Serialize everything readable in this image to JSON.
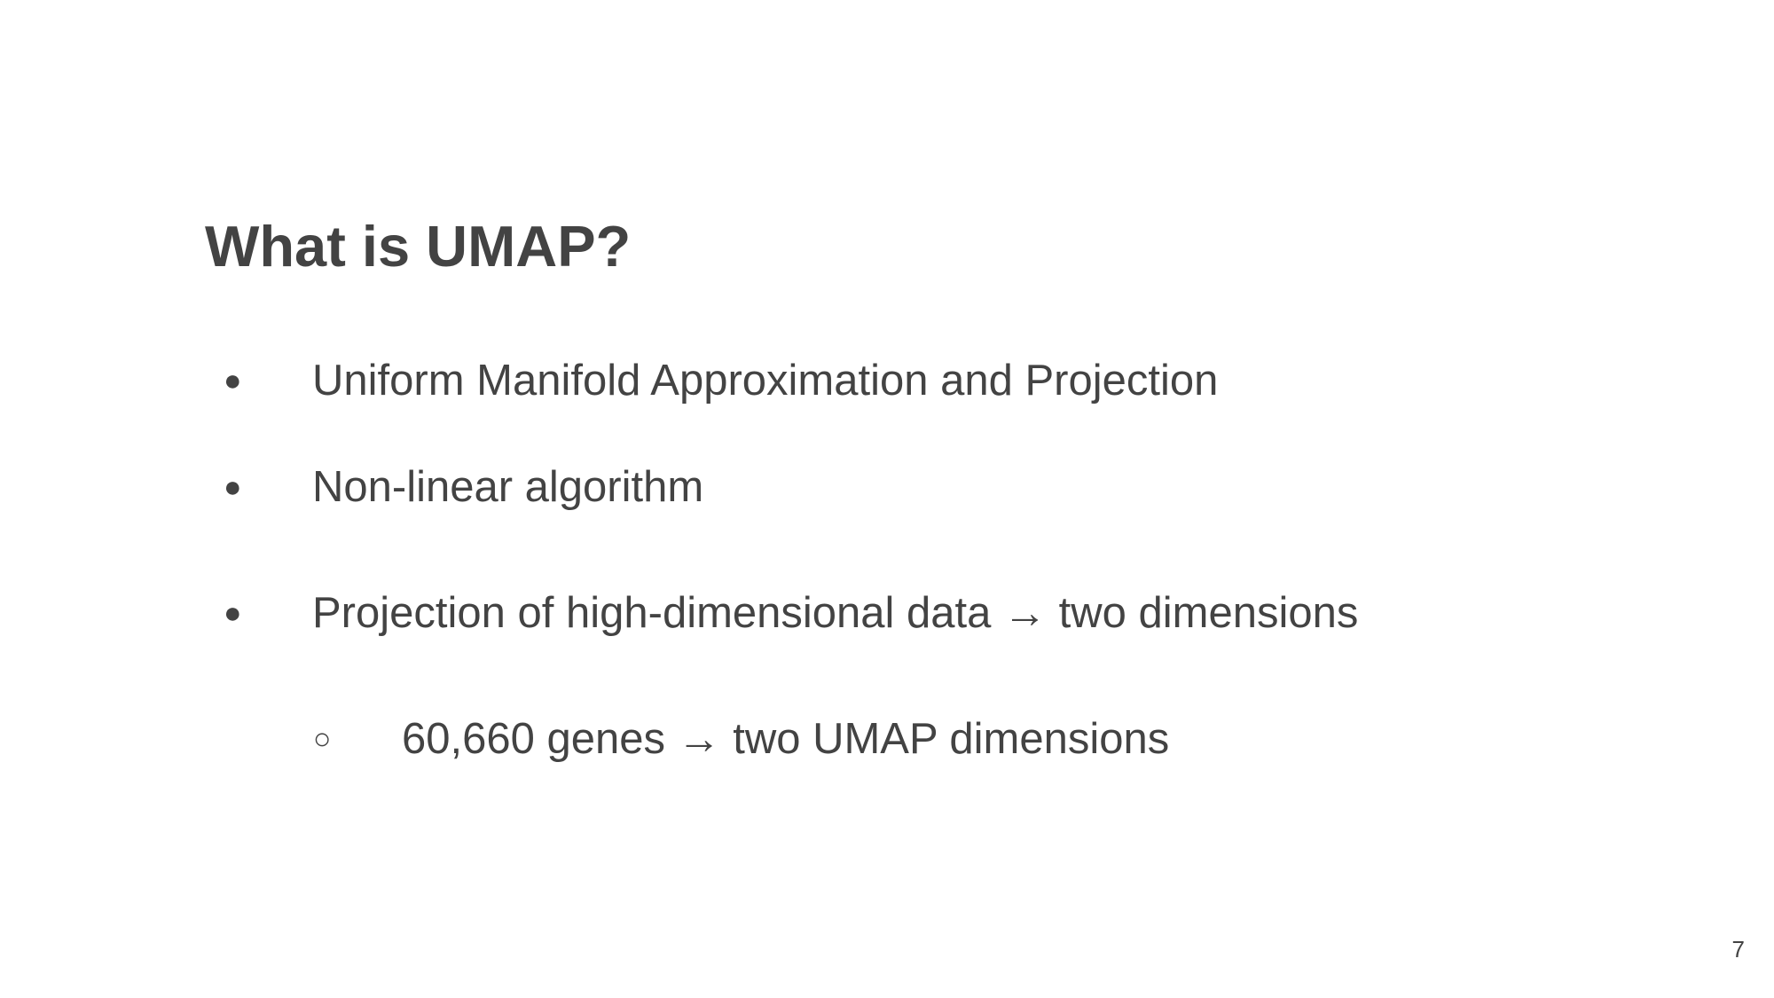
{
  "slide": {
    "title": "What is UMAP?",
    "bullets": [
      {
        "marker": "●",
        "text": "Uniform Manifold Approximation and Projection"
      },
      {
        "marker": "●",
        "text": "Non-linear algorithm"
      },
      {
        "marker": "●",
        "text": "Projection of high-dimensional data → two dimensions"
      }
    ],
    "sub_bullets": [
      {
        "marker": "○",
        "text": "60,660 genes → two UMAP dimensions"
      }
    ],
    "page_number": "7"
  }
}
